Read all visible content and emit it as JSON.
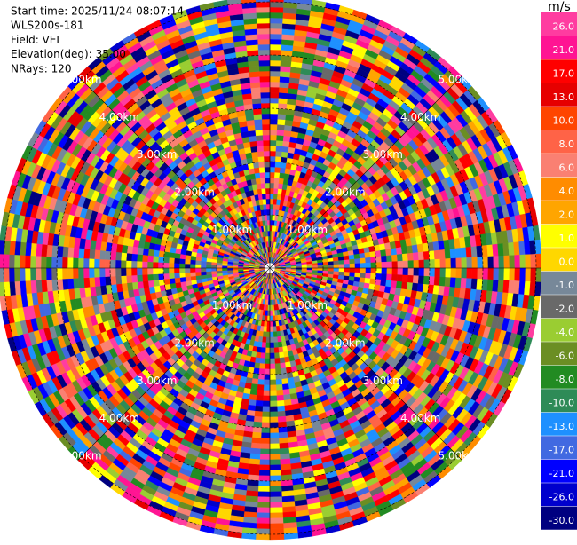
{
  "chart_data": {
    "type": "ppi",
    "info": [
      "Start time: 2025/11/24 08:07:14",
      "WLS200s-181",
      "Field: VEL",
      "Elevation(deg): 35.00",
      "NRays: 120"
    ],
    "range_labels": [
      "1.00km",
      "2.00km",
      "3.00km",
      "4.00km",
      "5.00km"
    ],
    "colorbar": {
      "label": "m/s",
      "ticks": [
        {
          "value": 26,
          "label": "26.0"
        },
        {
          "value": 21,
          "label": "21.0"
        },
        {
          "value": 17,
          "label": "17.0"
        },
        {
          "value": 13,
          "label": "13.0"
        },
        {
          "value": 10,
          "label": "10.0"
        },
        {
          "value": 8,
          "label": "8.0"
        },
        {
          "value": 6,
          "label": "6.0"
        },
        {
          "value": 4,
          "label": "4.0"
        },
        {
          "value": 2,
          "label": "2.0"
        },
        {
          "value": 1,
          "label": "1.0"
        },
        {
          "value": 0,
          "label": "0.0"
        },
        {
          "value": -1,
          "label": "-1.0"
        },
        {
          "value": -2,
          "label": "-2.0"
        },
        {
          "value": -4,
          "label": "-4.0"
        },
        {
          "value": -6,
          "label": "-6.0"
        },
        {
          "value": -8,
          "label": "-8.0"
        },
        {
          "value": -10,
          "label": "-10.0"
        },
        {
          "value": -13,
          "label": "-13.0"
        },
        {
          "value": -17,
          "label": "-17.0"
        },
        {
          "value": -21,
          "label": "-21.0"
        },
        {
          "value": -26,
          "label": "-26.0"
        },
        {
          "value": -30,
          "label": "-30.0"
        }
      ],
      "colors": [
        "#ff3ca0",
        "#ff1493",
        "#ff0000",
        "#e60000",
        "#ff4500",
        "#ff6347",
        "#fa8072",
        "#ff8c00",
        "#ffa500",
        "#ffff00",
        "#ffd700",
        "#778899",
        "#696969",
        "#9acd32",
        "#6b8e23",
        "#228b22",
        "#2e8b57",
        "#1e90ff",
        "#4169e1",
        "#0000ff",
        "#0000cd",
        "#000080"
      ]
    }
  }
}
